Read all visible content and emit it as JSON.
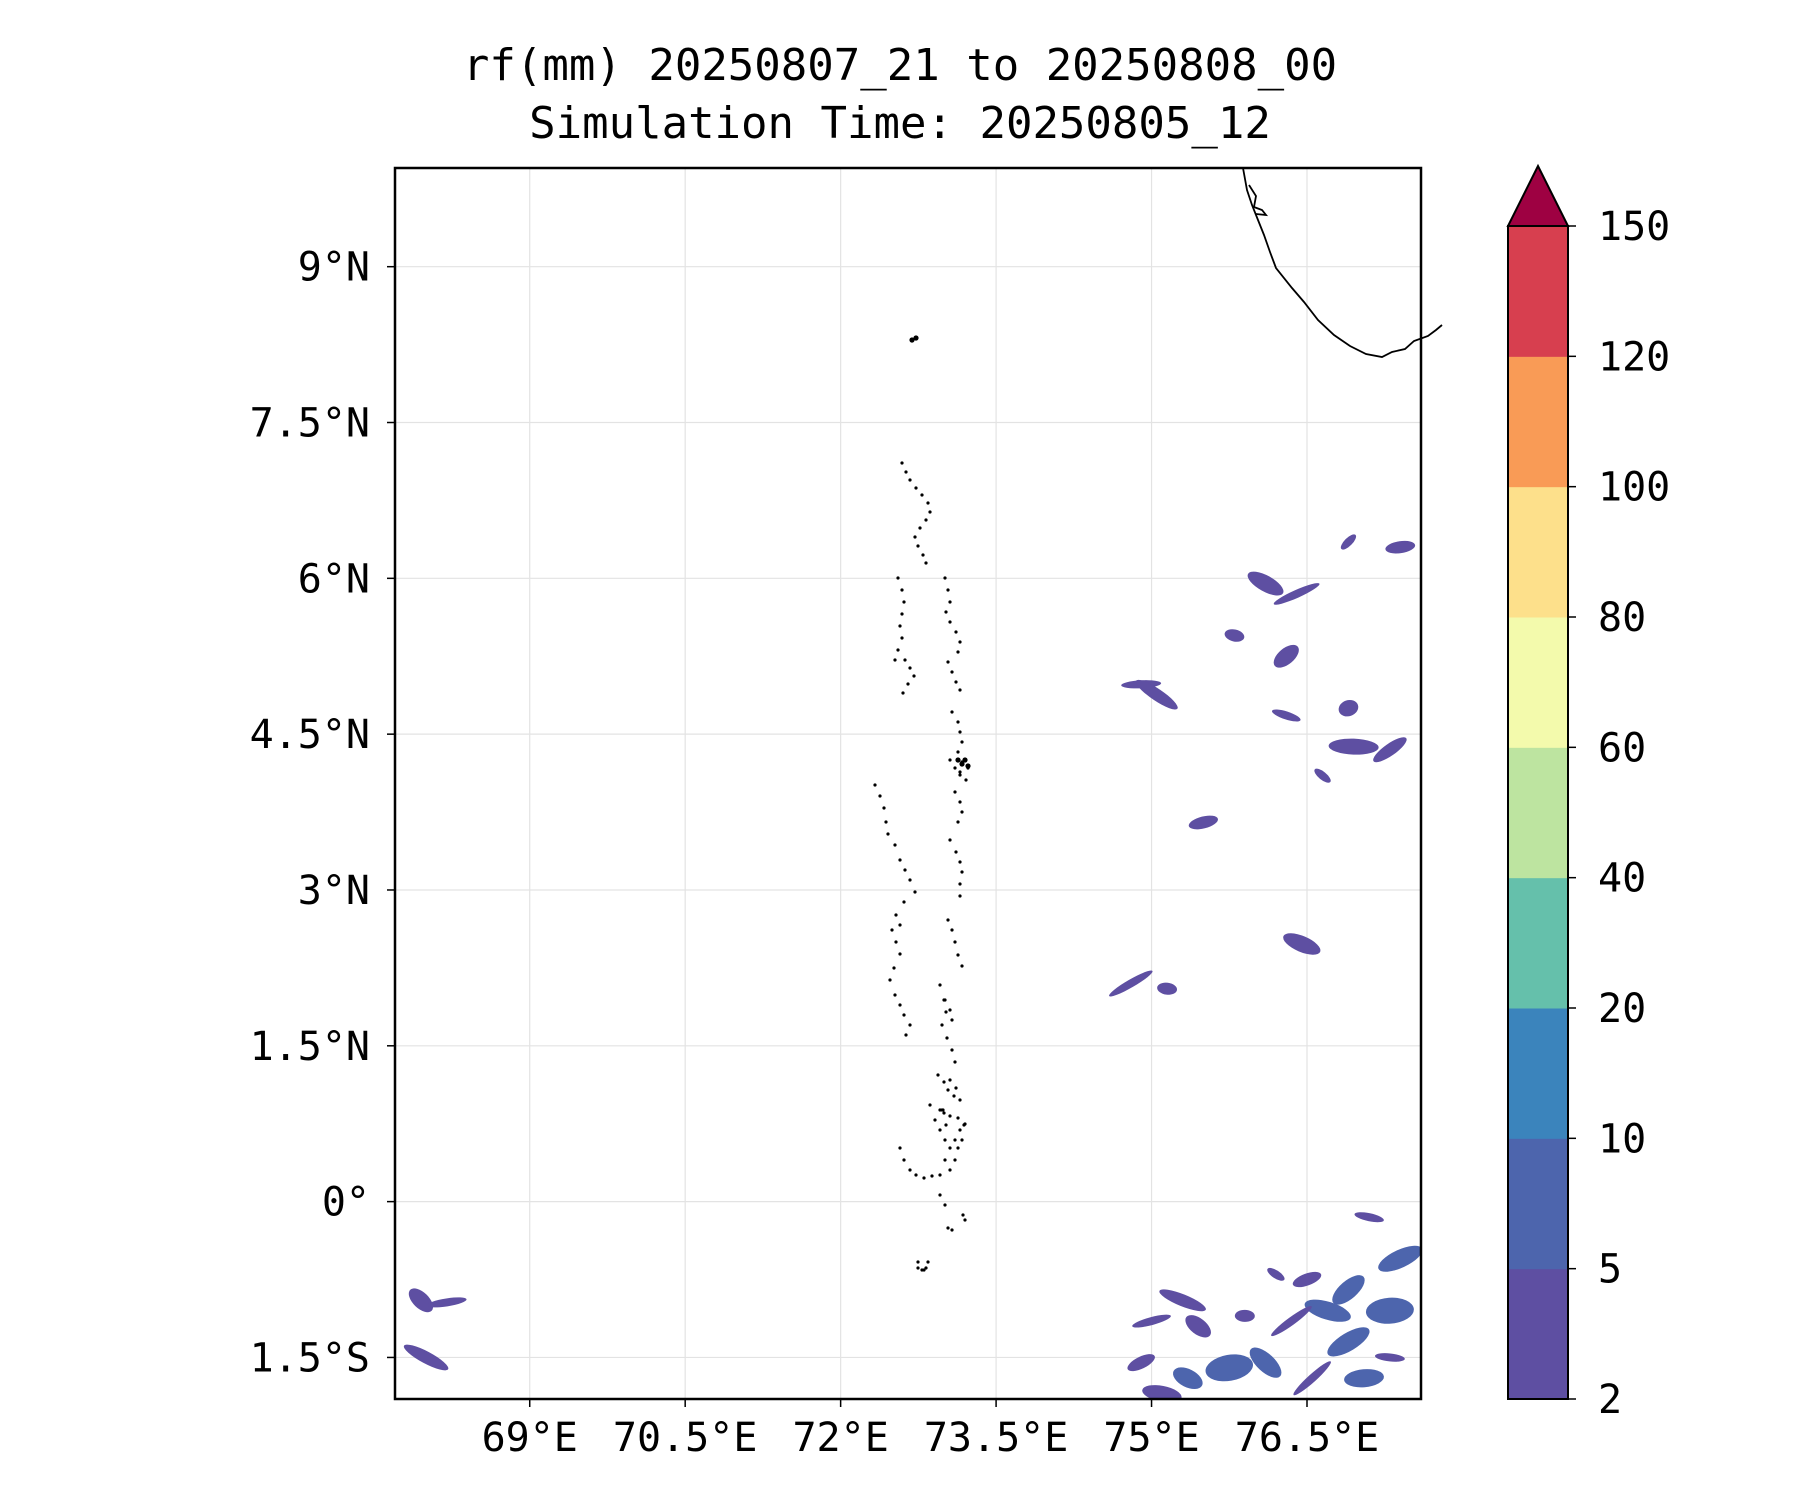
{
  "chart_data": {
    "type": "heatmap",
    "title": "rf(mm) 20250807_21 to 20250808_00",
    "subtitle": "Simulation Time: 20250805_12",
    "xlabel": "",
    "ylabel": "",
    "xlim": [
      67.7,
      77.6
    ],
    "ylim": [
      -1.9,
      9.95
    ],
    "x_ticks": [
      69,
      70.5,
      72,
      73.5,
      75,
      76.5
    ],
    "x_tick_labels": [
      "69°E",
      "70.5°E",
      "72°E",
      "73.5°E",
      "75°E",
      "76.5°E"
    ],
    "y_ticks": [
      9,
      7.5,
      6,
      4.5,
      3,
      1.5,
      0,
      -1.5
    ],
    "y_tick_labels": [
      "9°N",
      "7.5°N",
      "6°N",
      "4.5°N",
      "3°N",
      "1.5°N",
      "0°",
      "1.5°S"
    ],
    "grid": true,
    "colorbar": {
      "levels": [
        2,
        5,
        10,
        20,
        40,
        60,
        80,
        100,
        120,
        150
      ],
      "labels": [
        "2",
        "5",
        "10",
        "20",
        "40",
        "60",
        "80",
        "100",
        "120",
        "150"
      ],
      "colors": [
        "#5e4fa2",
        "#4d65ad",
        "#3b84bc",
        "#65c0ab",
        "#bde4a0",
        "#f3faac",
        "#fde08b",
        "#f99b56",
        "#d73f4f",
        "#9e0142"
      ],
      "extend": "max"
    },
    "rain_cells_mm": [
      {
        "lon": 76.9,
        "lat": 6.35,
        "value": 3
      },
      {
        "lon": 77.4,
        "lat": 6.3,
        "value": 4
      },
      {
        "lon": 76.1,
        "lat": 5.95,
        "value": 3
      },
      {
        "lon": 76.4,
        "lat": 5.85,
        "value": 3
      },
      {
        "lon": 75.8,
        "lat": 5.45,
        "value": 4
      },
      {
        "lon": 76.3,
        "lat": 5.25,
        "value": 3
      },
      {
        "lon": 74.9,
        "lat": 4.98,
        "value": 3
      },
      {
        "lon": 75.05,
        "lat": 4.88,
        "value": 4
      },
      {
        "lon": 76.9,
        "lat": 4.75,
        "value": 3
      },
      {
        "lon": 76.3,
        "lat": 4.68,
        "value": 2
      },
      {
        "lon": 77.3,
        "lat": 4.35,
        "value": 4
      },
      {
        "lon": 76.95,
        "lat": 4.38,
        "value": 3
      },
      {
        "lon": 76.65,
        "lat": 4.1,
        "value": 3
      },
      {
        "lon": 75.5,
        "lat": 3.65,
        "value": 2
      },
      {
        "lon": 76.45,
        "lat": 2.48,
        "value": 2
      },
      {
        "lon": 74.8,
        "lat": 2.1,
        "value": 2
      },
      {
        "lon": 75.15,
        "lat": 2.05,
        "value": 2
      },
      {
        "lon": 67.95,
        "lat": -0.95,
        "value": 3
      },
      {
        "lon": 68.2,
        "lat": -0.97,
        "value": 4
      },
      {
        "lon": 68.0,
        "lat": -1.5,
        "value": 4
      },
      {
        "lon": 77.4,
        "lat": -0.55,
        "value": 7
      },
      {
        "lon": 77.1,
        "lat": -0.15,
        "value": 4
      },
      {
        "lon": 76.9,
        "lat": -0.85,
        "value": 6
      },
      {
        "lon": 77.3,
        "lat": -1.05,
        "value": 7
      },
      {
        "lon": 76.2,
        "lat": -0.7,
        "value": 4
      },
      {
        "lon": 76.5,
        "lat": -0.75,
        "value": 3
      },
      {
        "lon": 76.7,
        "lat": -1.05,
        "value": 5
      },
      {
        "lon": 76.35,
        "lat": -1.15,
        "value": 4
      },
      {
        "lon": 75.9,
        "lat": -1.1,
        "value": 4
      },
      {
        "lon": 75.45,
        "lat": -1.2,
        "value": 4
      },
      {
        "lon": 75.0,
        "lat": -1.15,
        "value": 3
      },
      {
        "lon": 75.3,
        "lat": -0.95,
        "value": 3
      },
      {
        "lon": 76.9,
        "lat": -1.35,
        "value": 5
      },
      {
        "lon": 77.3,
        "lat": -1.5,
        "value": 4
      },
      {
        "lon": 76.1,
        "lat": -1.55,
        "value": 5
      },
      {
        "lon": 75.75,
        "lat": -1.6,
        "value": 6
      },
      {
        "lon": 75.35,
        "lat": -1.7,
        "value": 5
      },
      {
        "lon": 74.9,
        "lat": -1.55,
        "value": 4
      },
      {
        "lon": 75.1,
        "lat": -1.85,
        "value": 4
      },
      {
        "lon": 76.55,
        "lat": -1.7,
        "value": 4
      },
      {
        "lon": 77.05,
        "lat": -1.7,
        "value": 5
      }
    ]
  }
}
